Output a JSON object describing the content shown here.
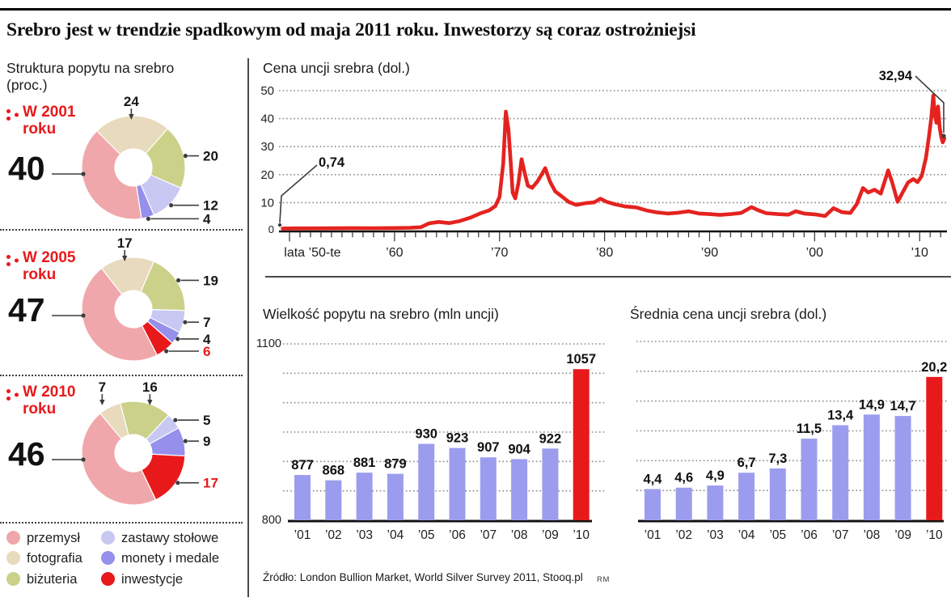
{
  "page": {
    "title": "Srebro jest w trendzie spadkowym od maja 2011 roku. Inwestorzy są coraz ostrożniejsi",
    "source": "Źródło: London Bullion Market, World Silver Survey 2011, Stooq.pl",
    "credit": "RM"
  },
  "colors": {
    "przemysl": "#f0a7ab",
    "fotografia": "#e8dabc",
    "bizuteria": "#cbd189",
    "zastawy": "#c8c8f3",
    "monety": "#9590ec",
    "inwestycje": "#e8191b",
    "bar": "#9c9cef",
    "bar_highlight": "#e8191b",
    "line": "#e42320",
    "leader": "#3c3c3c"
  },
  "demand_structure": {
    "heading1": "Struktura popytu na srebro",
    "heading2": "(proc.)",
    "legend": [
      {
        "label": "przemysł",
        "key": "przemysl"
      },
      {
        "label": "fotografia",
        "key": "fotografia"
      },
      {
        "label": "biżuteria",
        "key": "bizuteria"
      },
      {
        "label": "zastawy stołowe",
        "key": "zastawy"
      },
      {
        "label": "monety i medale",
        "key": "monety"
      },
      {
        "label": "inwestycje",
        "key": "inwestycje"
      }
    ]
  },
  "chart_data": [
    {
      "type": "line",
      "id": "price-history",
      "title": "Cena uncji srebra (dol.)",
      "ylim": [
        0,
        50
      ],
      "xlim": [
        1949,
        2012.6
      ],
      "y_ticks": [
        50,
        40,
        30,
        20,
        10
      ],
      "y_zero_label": "0",
      "x_labels": [
        {
          "label": "lata ’50-te",
          "year": 1950.1,
          "align": "start"
        },
        {
          "label": "’60",
          "year": 1960
        },
        {
          "label": "’70",
          "year": 1970
        },
        {
          "label": "’80",
          "year": 1980
        },
        {
          "label": "’90",
          "year": 1990
        },
        {
          "label": "’00",
          "year": 2000
        },
        {
          "label": "’10",
          "year": 2010
        }
      ],
      "callout_start": "0,74",
      "callout_end": "32,94",
      "series": [
        [
          1949.35,
          0.74
        ],
        [
          1950.5,
          0.8
        ],
        [
          1952,
          0.82
        ],
        [
          1954,
          0.85
        ],
        [
          1956,
          0.9
        ],
        [
          1958,
          0.88
        ],
        [
          1960,
          0.92
        ],
        [
          1961.5,
          1.0
        ],
        [
          1962.5,
          1.2
        ],
        [
          1963.3,
          2.6
        ],
        [
          1964.2,
          3.1
        ],
        [
          1965.2,
          2.7
        ],
        [
          1966.2,
          3.4
        ],
        [
          1967.2,
          4.6
        ],
        [
          1968.2,
          6.2
        ],
        [
          1969,
          7.2
        ],
        [
          1969.6,
          8.8
        ],
        [
          1970.0,
          12
        ],
        [
          1970.35,
          24
        ],
        [
          1970.6,
          42.5
        ],
        [
          1970.85,
          36
        ],
        [
          1971.05,
          25
        ],
        [
          1971.25,
          13.5
        ],
        [
          1971.5,
          11.5
        ],
        [
          1971.8,
          17
        ],
        [
          1972.1,
          25.5
        ],
        [
          1972.4,
          20.5
        ],
        [
          1972.7,
          16
        ],
        [
          1973.1,
          15.3
        ],
        [
          1973.6,
          17.5
        ],
        [
          1974.0,
          20
        ],
        [
          1974.35,
          22.3
        ],
        [
          1974.8,
          17.5
        ],
        [
          1975.3,
          14
        ],
        [
          1976.0,
          12
        ],
        [
          1976.6,
          10.2
        ],
        [
          1977.3,
          9.2
        ],
        [
          1978.2,
          9.8
        ],
        [
          1979.0,
          10.1
        ],
        [
          1979.6,
          11.4
        ],
        [
          1980.2,
          10.3
        ],
        [
          1981,
          9.4
        ],
        [
          1982,
          8.6
        ],
        [
          1983,
          8.3
        ],
        [
          1984,
          7.2
        ],
        [
          1985,
          6.5
        ],
        [
          1986,
          6.1
        ],
        [
          1987,
          6.4
        ],
        [
          1988,
          6.9
        ],
        [
          1989,
          6.1
        ],
        [
          1990,
          5.9
        ],
        [
          1991,
          5.6
        ],
        [
          1992,
          5.9
        ],
        [
          1993,
          6.3
        ],
        [
          1994,
          8.4
        ],
        [
          1994.6,
          7.3
        ],
        [
          1995.4,
          6.2
        ],
        [
          1996.5,
          5.9
        ],
        [
          1997.5,
          5.7
        ],
        [
          1998.2,
          6.9
        ],
        [
          1999,
          6.1
        ],
        [
          2000,
          5.8
        ],
        [
          2001,
          5.2
        ],
        [
          2001.8,
          8.0
        ],
        [
          2002.6,
          6.6
        ],
        [
          2003.4,
          6.3
        ],
        [
          2004.0,
          9.4
        ],
        [
          2004.6,
          15.2
        ],
        [
          2005.1,
          13.6
        ],
        [
          2005.7,
          14.6
        ],
        [
          2006.3,
          13.2
        ],
        [
          2007.0,
          21.5
        ],
        [
          2007.4,
          17
        ],
        [
          2007.9,
          10.3
        ],
        [
          2008.4,
          13.8
        ],
        [
          2008.9,
          17.2
        ],
        [
          2009.4,
          18.4
        ],
        [
          2009.8,
          17.3
        ],
        [
          2010.2,
          19.5
        ],
        [
          2010.6,
          26
        ],
        [
          2010.9,
          34
        ],
        [
          2011.1,
          40
        ],
        [
          2011.3,
          48.3
        ],
        [
          2011.45,
          41
        ],
        [
          2011.6,
          38.5
        ],
        [
          2011.75,
          44.3
        ],
        [
          2011.9,
          37
        ],
        [
          2012.05,
          33.5
        ],
        [
          2012.2,
          31.5
        ],
        [
          2012.35,
          32.94
        ]
      ]
    },
    {
      "type": "donut",
      "id": "structure-2001",
      "period1": "W 2001",
      "period2": "roku",
      "start_deg": 315,
      "segments": [
        {
          "key": "fotografia",
          "value": 24
        },
        {
          "key": "bizuteria",
          "value": 20
        },
        {
          "key": "zastawy",
          "value": 12
        },
        {
          "key": "monety",
          "value": 4
        },
        {
          "key": "przemysl",
          "value": 40
        }
      ]
    },
    {
      "type": "donut",
      "id": "structure-2005",
      "period1": "W 2005",
      "period2": "roku",
      "start_deg": 322,
      "segments": [
        {
          "key": "fotografia",
          "value": 17
        },
        {
          "key": "bizuteria",
          "value": 19
        },
        {
          "key": "zastawy",
          "value": 7
        },
        {
          "key": "monety",
          "value": 4
        },
        {
          "key": "inwestycje",
          "value": 6
        },
        {
          "key": "przemysl",
          "value": 47
        }
      ]
    },
    {
      "type": "donut",
      "id": "structure-2010",
      "period1": "W 2010",
      "period2": "roku",
      "start_deg": 320,
      "segments": [
        {
          "key": "fotografia",
          "value": 7
        },
        {
          "key": "bizuteria",
          "value": 16
        },
        {
          "key": "zastawy",
          "value": 5
        },
        {
          "key": "monety",
          "value": 9
        },
        {
          "key": "inwestycje",
          "value": 17
        },
        {
          "key": "przemysl",
          "value": 46
        }
      ]
    },
    {
      "type": "bar",
      "id": "demand-volume",
      "title": "Wielkość popytu na srebro (mln uncji)",
      "categories": [
        "’01",
        "’02",
        "’03",
        "’04",
        "’05",
        "’06",
        "’07",
        "’08",
        "’09",
        "’10"
      ],
      "values": [
        877,
        868,
        881,
        879,
        930,
        923,
        907,
        904,
        922,
        1057
      ],
      "value_labels": [
        "877",
        "868",
        "881",
        "879",
        "930",
        "923",
        "907",
        "904",
        "922",
        "1057"
      ],
      "ylim": [
        800,
        1100
      ],
      "y_axis_labels": {
        "top": "1100",
        "bottom": "800"
      },
      "highlight_last": true
    },
    {
      "type": "bar",
      "id": "avg-price",
      "title": "Średnia cena uncji srebra (dol.)",
      "categories": [
        "’01",
        "’02",
        "’03",
        "’04",
        "’05",
        "’06",
        "’07",
        "’08",
        "’09",
        "’10"
      ],
      "values": [
        4.4,
        4.6,
        4.9,
        6.7,
        7.3,
        11.5,
        13.4,
        14.9,
        14.7,
        20.2
      ],
      "value_labels": [
        "4,4",
        "4,6",
        "4,9",
        "6,7",
        "7,3",
        "11,5",
        "13,4",
        "14,9",
        "14,7",
        "20,2"
      ],
      "ylim": [
        0,
        25.2
      ],
      "highlight_last": true
    }
  ]
}
